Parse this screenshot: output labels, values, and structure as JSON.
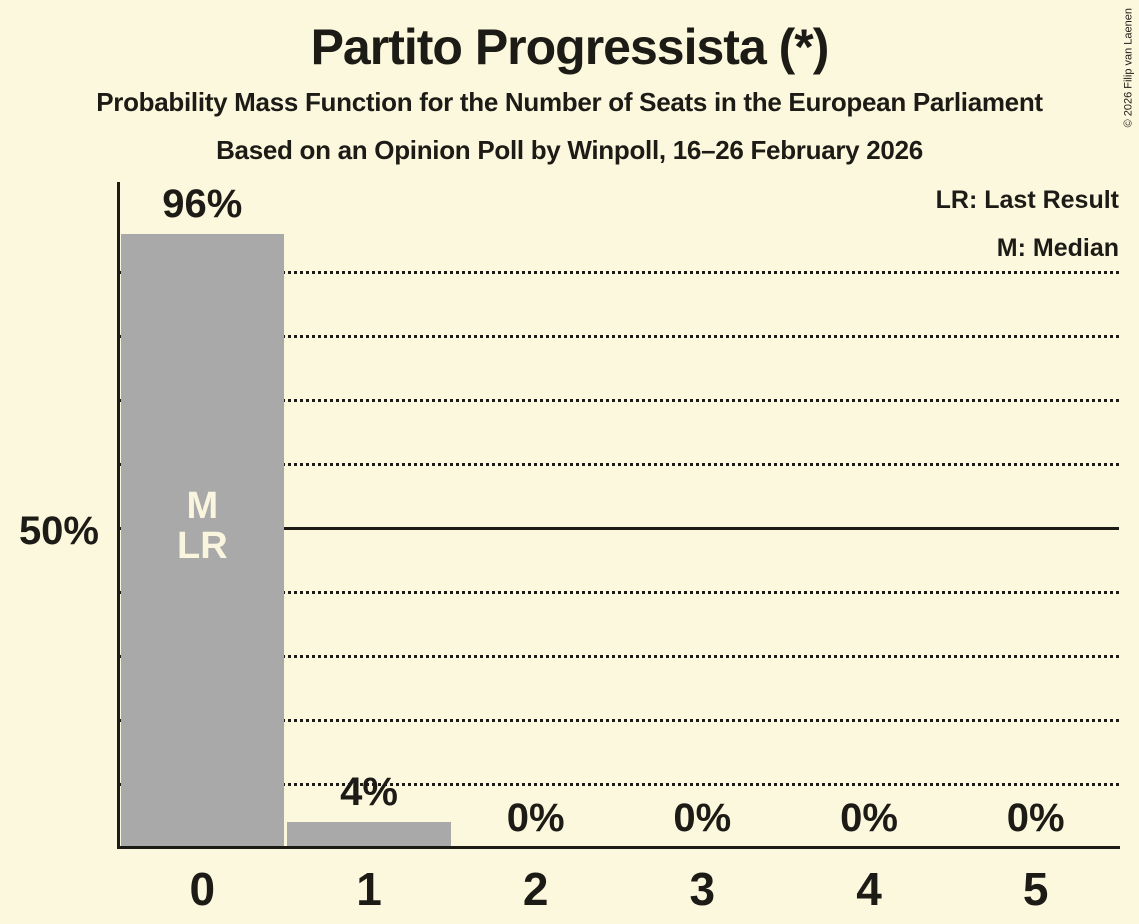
{
  "header": {
    "title": "Partito Progressista (*)",
    "subtitle": "Probability Mass Function for the Number of Seats in the European Parliament",
    "poll_info": "Based on an Opinion Poll by Winpoll, 16–26 February 2026"
  },
  "copyright": "© 2026 Filip van Laenen",
  "legend": {
    "last_result": "LR: Last Result",
    "median": "M: Median"
  },
  "colors": {
    "background": "#FCF8DE",
    "bar": "#A9A9A9",
    "text": "#1D1B16",
    "bar_label": "#F9F5DF"
  },
  "chart_data": {
    "type": "bar",
    "title": "Partito Progressista (*)",
    "categories": [
      "0",
      "1",
      "2",
      "3",
      "4",
      "5"
    ],
    "values": [
      96,
      4,
      0,
      0,
      0,
      0
    ],
    "value_labels": [
      "96%",
      "4%",
      "0%",
      "0%",
      "0%",
      "0%"
    ],
    "ylim": [
      0,
      100
    ],
    "ytick": {
      "pct": 50,
      "label": "50%"
    },
    "gridlines_pct": [
      10,
      20,
      30,
      40,
      60,
      70,
      80,
      90
    ],
    "solid_gridline_pct": 50,
    "grid": "dotted horizontal lines every 10%, solid line at 50%",
    "legend_position": "top-right",
    "annotations": [
      {
        "category": "0",
        "lines": [
          "M",
          "LR"
        ]
      }
    ]
  }
}
